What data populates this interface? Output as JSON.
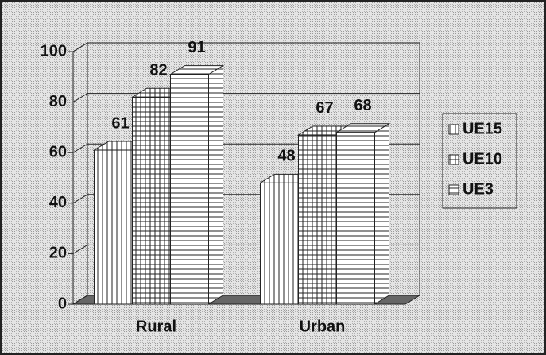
{
  "chart_data": {
    "type": "bar3d",
    "categories": [
      "Rural",
      "Urban"
    ],
    "series": [
      {
        "name": "UE15",
        "color": "#ffffff",
        "pattern": "vertical",
        "values": [
          61,
          48
        ]
      },
      {
        "name": "UE10",
        "color": "#ffffff",
        "pattern": "grid",
        "values": [
          82,
          67
        ]
      },
      {
        "name": "UE3",
        "color": "#ffffff",
        "pattern": "horizontal",
        "values": [
          91,
          68
        ]
      }
    ],
    "ylim": [
      0,
      100
    ],
    "yticks": [
      0,
      20,
      40,
      60,
      80,
      100
    ],
    "grid": true,
    "legend": "right"
  }
}
